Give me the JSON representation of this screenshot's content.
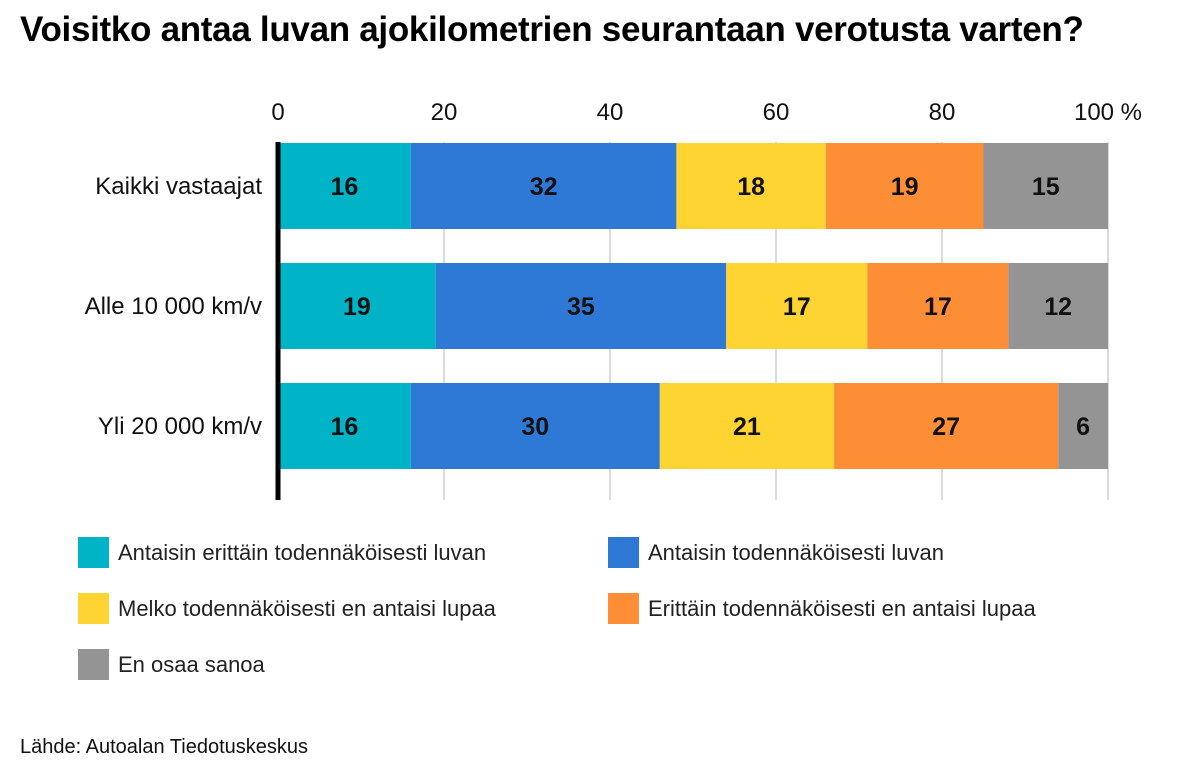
{
  "chart_data": {
    "type": "bar",
    "orientation": "horizontal",
    "stacked": true,
    "title": "Voisitko antaa luvan ajokilometrien seurantaan verotusta varten?",
    "categories": [
      "Kaikki vastaajat",
      "Alle 10 000 km/v",
      "Yli 20 000 km/v"
    ],
    "series": [
      {
        "name": "Antaisin erittäin todennäköisesti luvan",
        "color": "#00B3C7",
        "values": [
          16,
          19,
          16
        ]
      },
      {
        "name": "Antaisin todennäköisesti luvan",
        "color": "#2E79D6",
        "values": [
          32,
          35,
          30
        ]
      },
      {
        "name": "Melko todennäköisesti en antaisi lupaa",
        "color": "#FDD432",
        "values": [
          18,
          17,
          21
        ]
      },
      {
        "name": "Erittäin todennäköisesti en antaisi lupaa",
        "color": "#FD8E36",
        "values": [
          19,
          17,
          27
        ]
      },
      {
        "name": "En osaa sanoa",
        "color": "#949494",
        "values": [
          15,
          12,
          6
        ]
      }
    ],
    "x_ticks": [
      "0",
      "20",
      "40",
      "60",
      "80",
      "100 %"
    ],
    "xlim": [
      0,
      100
    ],
    "grid": true,
    "legend_position": "bottom"
  },
  "source": "Lähde: Autoalan Tiedotuskeskus"
}
